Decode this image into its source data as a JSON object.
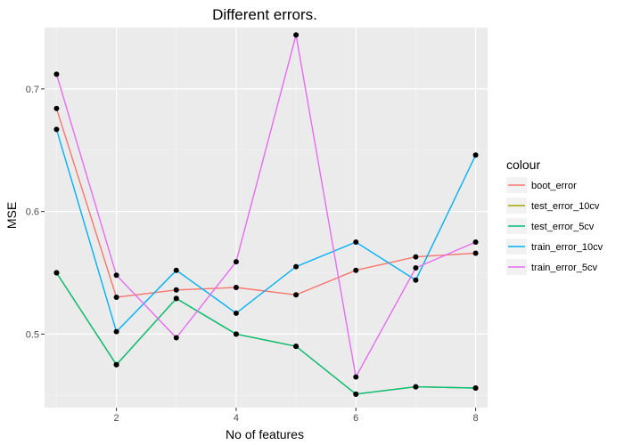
{
  "chart_data": {
    "type": "line",
    "title": "Different errors.",
    "xlabel": "No of features",
    "ylabel": "MSE",
    "xlim": [
      0.8,
      8.2
    ],
    "ylim": [
      0.44,
      0.75
    ],
    "x_ticks": [
      2,
      4,
      6,
      8
    ],
    "y_ticks": [
      0.5,
      0.6,
      0.7
    ],
    "grid": true,
    "legend": {
      "title": "colour",
      "position": "right"
    },
    "x": [
      1,
      2,
      3,
      4,
      5,
      6,
      7,
      8
    ],
    "series": [
      {
        "name": "boot_error",
        "color": "#F8766D",
        "values": [
          0.684,
          0.53,
          0.536,
          0.538,
          0.532,
          0.552,
          0.563,
          0.566
        ]
      },
      {
        "name": "test_error_10cv",
        "color": "#A3A500",
        "values": [
          0.55,
          0.475,
          0.529,
          0.5,
          0.49,
          0.451,
          0.457,
          0.456
        ]
      },
      {
        "name": "test_error_5cv",
        "color": "#00BF7D",
        "values": [
          0.55,
          0.475,
          0.529,
          0.5,
          0.49,
          0.451,
          0.457,
          0.456
        ]
      },
      {
        "name": "train_error_10cv",
        "color": "#00B0F6",
        "values": [
          0.667,
          0.502,
          0.552,
          0.517,
          0.555,
          0.575,
          0.544,
          0.646
        ]
      },
      {
        "name": "train_error_5cv",
        "color": "#E76BF3",
        "values": [
          0.712,
          0.548,
          0.497,
          0.559,
          0.744,
          0.465,
          0.554,
          0.575
        ]
      }
    ]
  }
}
